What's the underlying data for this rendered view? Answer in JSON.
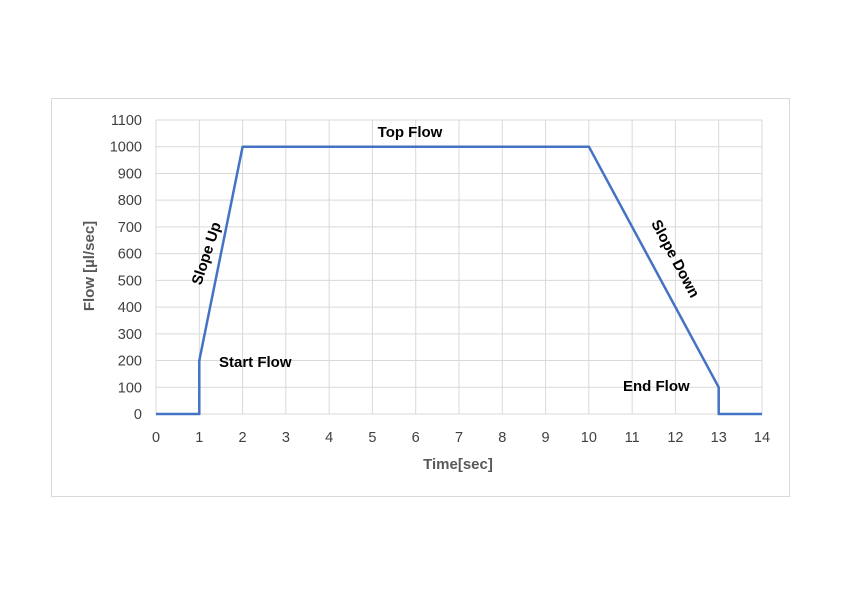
{
  "chart_data": {
    "type": "line",
    "xlabel": "Time[sec]",
    "ylabel": "Flow [µl/sec]",
    "xlim": [
      0,
      14
    ],
    "ylim": [
      0,
      1100
    ],
    "x_ticks": [
      0,
      1,
      2,
      3,
      4,
      5,
      6,
      7,
      8,
      9,
      10,
      11,
      12,
      13,
      14
    ],
    "y_ticks": [
      0,
      100,
      200,
      300,
      400,
      500,
      600,
      700,
      800,
      900,
      1000,
      1100
    ],
    "grid": true,
    "series": [
      {
        "color": "#4472c4",
        "points": [
          {
            "x": 0,
            "y": 0
          },
          {
            "x": 1,
            "y": 0
          },
          {
            "x": 1,
            "y": 200
          },
          {
            "x": 2,
            "y": 1000
          },
          {
            "x": 10,
            "y": 1000
          },
          {
            "x": 13,
            "y": 100
          },
          {
            "x": 13,
            "y": 0
          },
          {
            "x": 14,
            "y": 0
          }
        ]
      }
    ],
    "annotations": [
      {
        "text": "Top Flow"
      },
      {
        "text": "Slope Up"
      },
      {
        "text": "Start Flow"
      },
      {
        "text": "Slope Down"
      },
      {
        "text": "End Flow"
      }
    ]
  }
}
